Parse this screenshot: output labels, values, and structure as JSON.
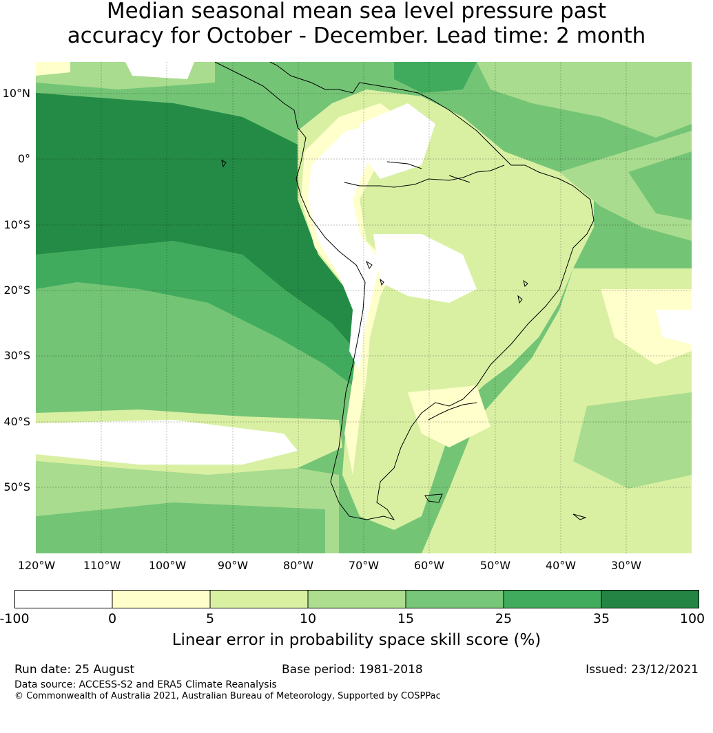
{
  "title": {
    "line1": "Median seasonal mean sea level pressure past",
    "line2": "accuracy for October - December. Lead time: 2 month"
  },
  "map": {
    "lat_labels": [
      "10°N",
      "0°",
      "10°S",
      "20°S",
      "30°S",
      "40°S",
      "50°S"
    ],
    "lon_labels": [
      "120°W",
      "110°W",
      "100°W",
      "90°W",
      "80°W",
      "70°W",
      "60°W",
      "50°W",
      "40°W",
      "30°W"
    ],
    "colors": {
      "ocean_dark": "#238b45",
      "ocean_mid": "#41ab5d",
      "ocean_light": "#74c476",
      "green_pale": "#a9dc8e",
      "yellow_green": "#d9f0a3",
      "pale_yellow": "#ffffcc",
      "white": "#ffffff",
      "coast": "#000000"
    }
  },
  "colorbar": {
    "ticks": [
      "-100",
      "0",
      "5",
      "10",
      "15",
      "25",
      "35",
      "100"
    ],
    "colors": [
      "#ffffff",
      "#ffffcc",
      "#d9f0a3",
      "#addd8e",
      "#78c679",
      "#41ab5d",
      "#238443"
    ],
    "label": "Linear error in probability space skill score (%)"
  },
  "footer": {
    "run_date": "Run date: 25 August",
    "base_period": "Base period: 1981-2018",
    "issued": "Issued: 23/12/2021",
    "data_source": "Data source: ACCESS-S2 and ERA5 Climate Reanalysis",
    "copyright": "© Commonwealth of Australia 2021, Australian Bureau of Meteorology, Supported by COSPPac"
  }
}
